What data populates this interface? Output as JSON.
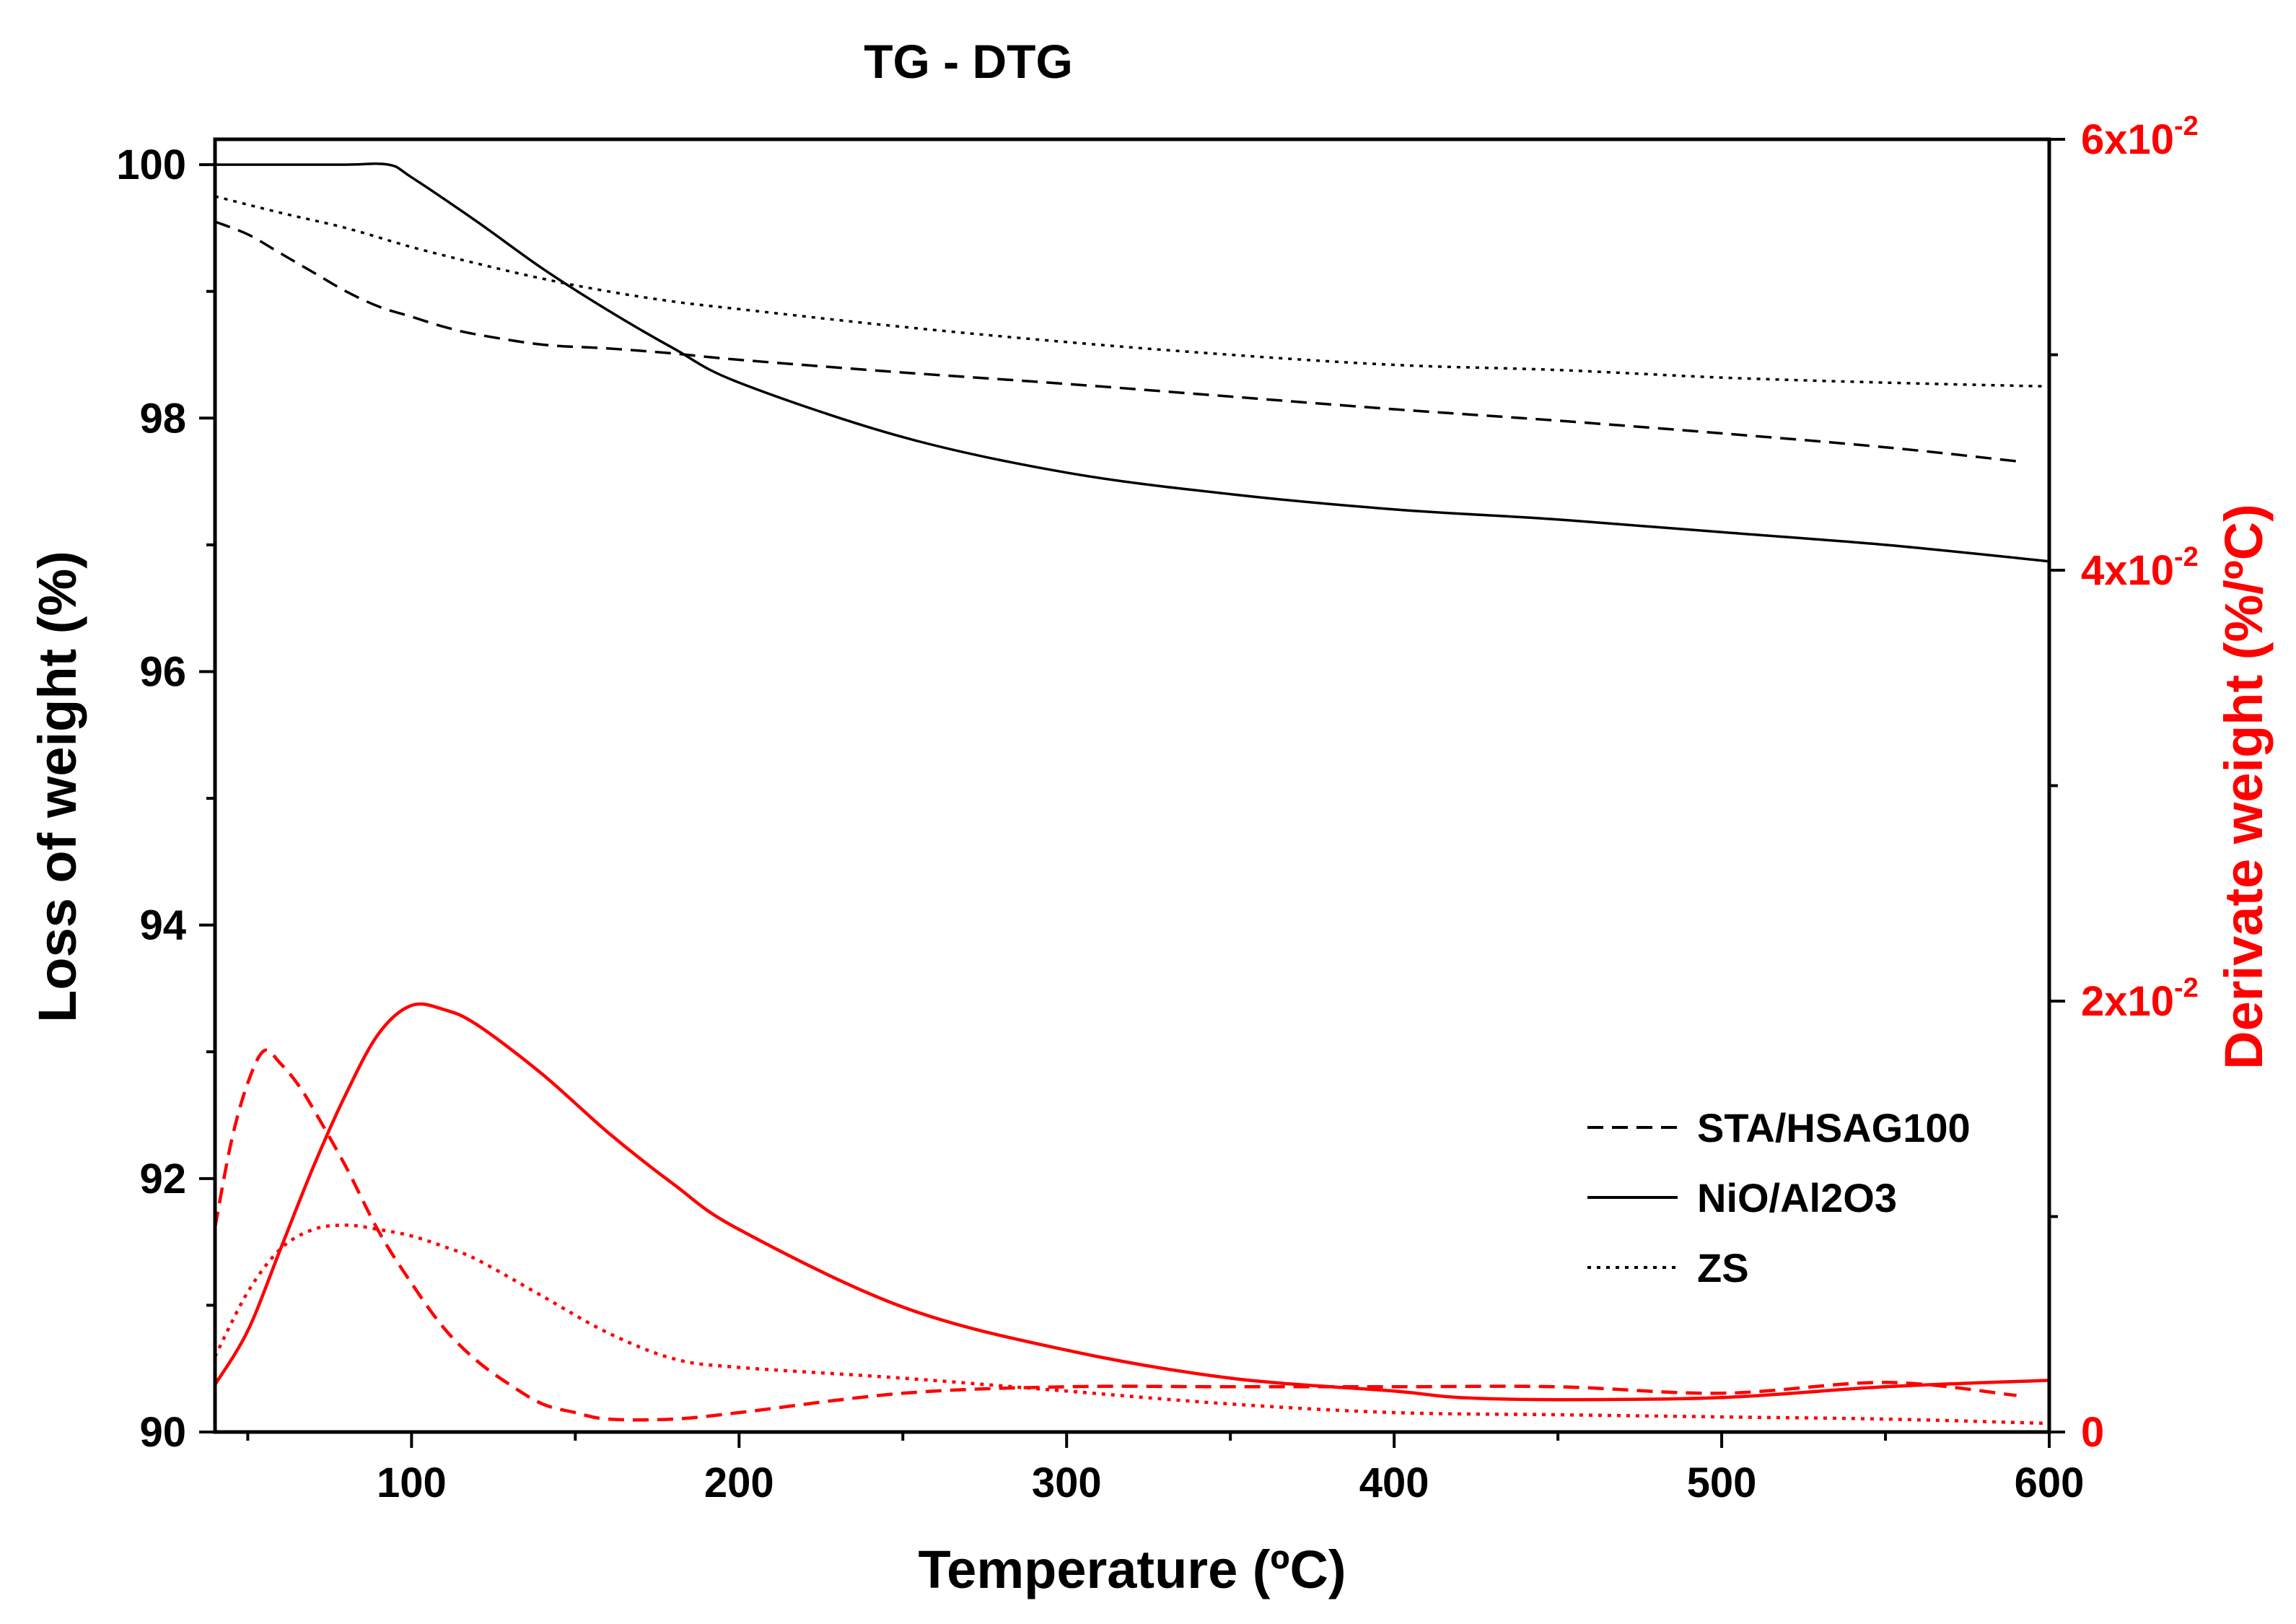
{
  "chart_data": {
    "type": "line",
    "title": "TG - DTG",
    "xlabel": "Temperature (ºC)",
    "ylabel": "Loss of weight (%)",
    "y2label": "Derivate weight (%/ºC)",
    "xlim": [
      40,
      600
    ],
    "ylim": [
      90,
      100.2
    ],
    "y2lim": [
      0,
      0.06
    ],
    "x_ticks": [
      100,
      200,
      300,
      400,
      500,
      600
    ],
    "x_tick_labels": [
      "100",
      "200",
      "300",
      "400",
      "500",
      "600"
    ],
    "y_ticks": [
      90,
      92,
      94,
      96,
      98,
      100
    ],
    "y_tick_labels": [
      "90",
      "92",
      "94",
      "96",
      "98",
      "100"
    ],
    "y2_ticks": [
      {
        "value": 0,
        "mantissa": "0",
        "exp": ""
      },
      {
        "value": 0.02,
        "mantissa": "2x10",
        "exp": "-2"
      },
      {
        "value": 0.04,
        "mantissa": "4x10",
        "exp": "-2"
      },
      {
        "value": 0.06,
        "mantissa": "6x10",
        "exp": "-2"
      }
    ],
    "legend": {
      "position": "center-right",
      "entries": [
        {
          "label": "STA/HSAG100",
          "dash": "dashed"
        },
        {
          "label": "NiO/Al2O3",
          "dash": "solid"
        },
        {
          "label": "ZS",
          "dash": "dotted"
        }
      ]
    },
    "series": [
      {
        "name": "STA/HSAG100",
        "kind": "TG",
        "axis": "left",
        "color": "#000000",
        "dash": "dashed",
        "x": [
          40,
          50,
          60,
          70,
          80,
          90,
          100,
          110,
          120,
          140,
          160,
          180,
          200,
          250,
          300,
          350,
          400,
          450,
          500,
          550,
          590
        ],
        "y": [
          99.55,
          99.45,
          99.3,
          99.15,
          99.0,
          98.88,
          98.8,
          98.72,
          98.66,
          98.58,
          98.55,
          98.51,
          98.46,
          98.36,
          98.27,
          98.17,
          98.07,
          97.98,
          97.88,
          97.77,
          97.66
        ]
      },
      {
        "name": "NiO/Al2O3",
        "kind": "TG",
        "axis": "left",
        "color": "#000000",
        "dash": "solid",
        "x": [
          40,
          60,
          80,
          93,
          100,
          120,
          140,
          160,
          180,
          200,
          250,
          300,
          350,
          400,
          450,
          500,
          550,
          600
        ],
        "y": [
          100.0,
          100.0,
          100.0,
          100.0,
          99.9,
          99.55,
          99.18,
          98.85,
          98.55,
          98.28,
          97.85,
          97.57,
          97.4,
          97.28,
          97.2,
          97.1,
          97.0,
          96.87
        ]
      },
      {
        "name": "ZS",
        "kind": "TG",
        "axis": "left",
        "color": "#000000",
        "dash": "dotted",
        "x": [
          40,
          60,
          80,
          100,
          120,
          140,
          160,
          180,
          200,
          250,
          300,
          350,
          400,
          450,
          500,
          550,
          600
        ],
        "y": [
          99.75,
          99.62,
          99.5,
          99.35,
          99.22,
          99.1,
          99.0,
          98.92,
          98.86,
          98.72,
          98.6,
          98.5,
          98.42,
          98.38,
          98.32,
          98.28,
          98.25
        ]
      },
      {
        "name": "STA/HSAG100 DTG",
        "kind": "DTG",
        "axis": "right",
        "color": "#ff0000",
        "dash": "dashed",
        "x": [
          40,
          45,
          50,
          55,
          60,
          65,
          70,
          80,
          90,
          100,
          110,
          120,
          130,
          140,
          150,
          160,
          180,
          200,
          250,
          300,
          350,
          400,
          450,
          500,
          550,
          590
        ],
        "y": [
          0.0095,
          0.0135,
          0.0162,
          0.0177,
          0.0171,
          0.0162,
          0.015,
          0.0123,
          0.0093,
          0.0069,
          0.0048,
          0.0033,
          0.0022,
          0.0013,
          0.0009,
          0.0006,
          0.0006,
          0.0009,
          0.0018,
          0.0021,
          0.0021,
          0.0021,
          0.0021,
          0.0018,
          0.0023,
          0.0017
        ]
      },
      {
        "name": "NiO/Al2O3 DTG",
        "kind": "DTG",
        "axis": "right",
        "color": "#ff0000",
        "dash": "solid",
        "x": [
          40,
          50,
          60,
          70,
          80,
          90,
          100,
          110,
          120,
          140,
          160,
          180,
          200,
          250,
          300,
          350,
          400,
          420,
          450,
          500,
          550,
          600
        ],
        "y": [
          0.0022,
          0.0047,
          0.0085,
          0.0123,
          0.0157,
          0.0185,
          0.0198,
          0.0196,
          0.0189,
          0.0166,
          0.0139,
          0.0115,
          0.0094,
          0.0058,
          0.0038,
          0.0025,
          0.0019,
          0.0016,
          0.0015,
          0.0016,
          0.0021,
          0.0024
        ]
      },
      {
        "name": "ZS DTG",
        "kind": "DTG",
        "axis": "right",
        "color": "#ff0000",
        "dash": "dotted",
        "x": [
          40,
          50,
          60,
          70,
          80,
          90,
          100,
          110,
          120,
          140,
          160,
          180,
          200,
          250,
          300,
          350,
          400,
          450,
          500,
          550,
          600
        ],
        "y": [
          0.0035,
          0.0065,
          0.0085,
          0.0094,
          0.0096,
          0.0094,
          0.0091,
          0.0086,
          0.008,
          0.0063,
          0.0046,
          0.0034,
          0.003,
          0.0025,
          0.0019,
          0.0013,
          0.0009,
          0.0008,
          0.0007,
          0.0006,
          0.0004
        ]
      }
    ]
  }
}
